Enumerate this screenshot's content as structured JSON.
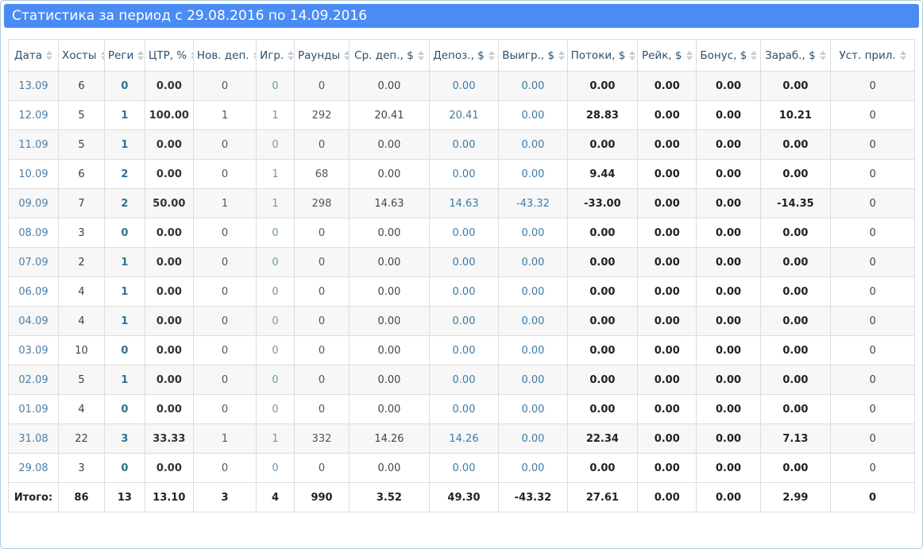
{
  "panel": {
    "title": "Статистика за период с 29.08.2016 по 14.09.2016",
    "accent_color": "#4b8cf4",
    "border_color": "#aecbe0"
  },
  "table": {
    "columns": [
      {
        "key": "date",
        "label": "Дата"
      },
      {
        "key": "hosts",
        "label": "Хосты"
      },
      {
        "key": "regs",
        "label": "Реги"
      },
      {
        "key": "ctr",
        "label": "ЦТР, %"
      },
      {
        "key": "new_dep",
        "label": "Нов. деп."
      },
      {
        "key": "players",
        "label": "Игр."
      },
      {
        "key": "rounds",
        "label": "Раунды"
      },
      {
        "key": "avg_dep",
        "label": "Ср. деп., $"
      },
      {
        "key": "deposits",
        "label": "Депоз., $"
      },
      {
        "key": "winnings",
        "label": "Выигр., $"
      },
      {
        "key": "flows",
        "label": "Потоки, $"
      },
      {
        "key": "rake",
        "label": "Рейк, $"
      },
      {
        "key": "bonus",
        "label": "Бонус, $"
      },
      {
        "key": "earned",
        "label": "Зараб., $"
      },
      {
        "key": "installs",
        "label": "Уст. прил."
      }
    ],
    "rows": [
      [
        "13.09",
        "6",
        "0",
        "0.00",
        "0",
        "0",
        "0",
        "0.00",
        "0.00",
        "0.00",
        "0.00",
        "0.00",
        "0.00",
        "0.00",
        "0"
      ],
      [
        "12.09",
        "5",
        "1",
        "100.00",
        "1",
        "1",
        "292",
        "20.41",
        "20.41",
        "0.00",
        "28.83",
        "0.00",
        "0.00",
        "10.21",
        "0"
      ],
      [
        "11.09",
        "5",
        "1",
        "0.00",
        "0",
        "0",
        "0",
        "0.00",
        "0.00",
        "0.00",
        "0.00",
        "0.00",
        "0.00",
        "0.00",
        "0"
      ],
      [
        "10.09",
        "6",
        "2",
        "0.00",
        "0",
        "1",
        "68",
        "0.00",
        "0.00",
        "0.00",
        "9.44",
        "0.00",
        "0.00",
        "0.00",
        "0"
      ],
      [
        "09.09",
        "7",
        "2",
        "50.00",
        "1",
        "1",
        "298",
        "14.63",
        "14.63",
        "-43.32",
        "-33.00",
        "0.00",
        "0.00",
        "-14.35",
        "0"
      ],
      [
        "08.09",
        "3",
        "0",
        "0.00",
        "0",
        "0",
        "0",
        "0.00",
        "0.00",
        "0.00",
        "0.00",
        "0.00",
        "0.00",
        "0.00",
        "0"
      ],
      [
        "07.09",
        "2",
        "1",
        "0.00",
        "0",
        "0",
        "0",
        "0.00",
        "0.00",
        "0.00",
        "0.00",
        "0.00",
        "0.00",
        "0.00",
        "0"
      ],
      [
        "06.09",
        "4",
        "1",
        "0.00",
        "0",
        "0",
        "0",
        "0.00",
        "0.00",
        "0.00",
        "0.00",
        "0.00",
        "0.00",
        "0.00",
        "0"
      ],
      [
        "04.09",
        "4",
        "1",
        "0.00",
        "0",
        "0",
        "0",
        "0.00",
        "0.00",
        "0.00",
        "0.00",
        "0.00",
        "0.00",
        "0.00",
        "0"
      ],
      [
        "03.09",
        "10",
        "0",
        "0.00",
        "0",
        "0",
        "0",
        "0.00",
        "0.00",
        "0.00",
        "0.00",
        "0.00",
        "0.00",
        "0.00",
        "0"
      ],
      [
        "02.09",
        "5",
        "1",
        "0.00",
        "0",
        "0",
        "0",
        "0.00",
        "0.00",
        "0.00",
        "0.00",
        "0.00",
        "0.00",
        "0.00",
        "0"
      ],
      [
        "01.09",
        "4",
        "0",
        "0.00",
        "0",
        "0",
        "0",
        "0.00",
        "0.00",
        "0.00",
        "0.00",
        "0.00",
        "0.00",
        "0.00",
        "0"
      ],
      [
        "31.08",
        "22",
        "3",
        "33.33",
        "1",
        "1",
        "332",
        "14.26",
        "14.26",
        "0.00",
        "22.34",
        "0.00",
        "0.00",
        "7.13",
        "0"
      ],
      [
        "29.08",
        "3",
        "0",
        "0.00",
        "0",
        "0",
        "0",
        "0.00",
        "0.00",
        "0.00",
        "0.00",
        "0.00",
        "0.00",
        "0.00",
        "0"
      ]
    ],
    "totals": [
      "Итого:",
      "86",
      "13",
      "13.10",
      "3",
      "4",
      "990",
      "3.52",
      "49.30",
      "-43.32",
      "27.61",
      "0.00",
      "0.00",
      "2.99",
      "0"
    ]
  }
}
